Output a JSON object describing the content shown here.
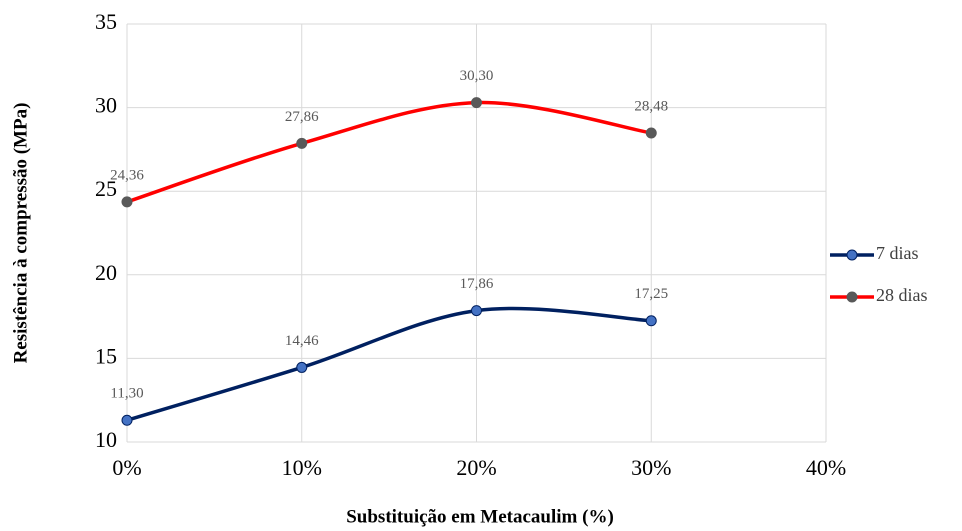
{
  "chart_data": {
    "type": "line",
    "x_label": "Substituição em Metacaulim (%)",
    "y_label": "Resistência à compressão (MPa)",
    "x": [
      0,
      10,
      20,
      30
    ],
    "series": [
      {
        "name": "7 dias",
        "color": "#002060",
        "marker_color": "#4472c4",
        "values": [
          11.3,
          14.46,
          17.86,
          17.25
        ],
        "value_labels": [
          "11,30",
          "14,46",
          "17,86",
          "17,25"
        ]
      },
      {
        "name": "28 dias",
        "color": "#ff0000",
        "marker_color": "#595959",
        "values": [
          24.36,
          27.86,
          30.3,
          28.48
        ],
        "value_labels": [
          "24,36",
          "27,86",
          "30,30",
          "28,48"
        ]
      }
    ],
    "xlim": [
      0,
      40
    ],
    "xticks": [
      {
        "value": 0,
        "label": "0%"
      },
      {
        "value": 10,
        "label": "10%"
      },
      {
        "value": 20,
        "label": "20%"
      },
      {
        "value": 30,
        "label": "30%"
      },
      {
        "value": 40,
        "label": "40%"
      }
    ],
    "ylim": [
      10,
      35
    ],
    "yticks": [
      10,
      15,
      20,
      25,
      30,
      35
    ],
    "grid": true,
    "smooth": true,
    "legend": "right"
  }
}
